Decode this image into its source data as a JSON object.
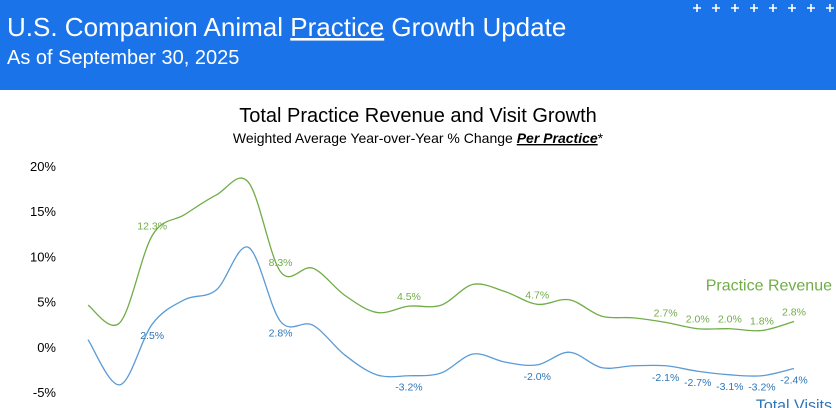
{
  "header": {
    "title": [
      "U.S. Companion Animal",
      "Practice",
      "Growth Update"
    ],
    "subtitle": "As of September 30, 2025"
  },
  "chart_data": {
    "type": "line",
    "title": "Total Practice Revenue and Visit Growth",
    "subtitle": [
      "Weighted Average Year-over-Year % Change",
      "Per Practice",
      "*"
    ],
    "categories": [
      null,
      null,
      null,
      null,
      null,
      null,
      null,
      null,
      null,
      null,
      null,
      null,
      null,
      null,
      null,
      null,
      null,
      null,
      null,
      null,
      null,
      null,
      null
    ],
    "ylim": [
      -5,
      20
    ],
    "yticks": [
      {
        "value": 20,
        "label": "20%"
      },
      {
        "value": 15,
        "label": "15%"
      },
      {
        "value": 10,
        "label": "10%"
      },
      {
        "value": 5,
        "label": "5%"
      },
      {
        "value": 0,
        "label": "0%"
      },
      {
        "value": -5,
        "label": "-5%"
      }
    ],
    "grid": false,
    "series": [
      {
        "name": "Practice Revenue",
        "color": "#70ad47",
        "label_position": "above",
        "values": [
          4.6,
          2.7,
          12.3,
          14.6,
          16.8,
          18.2,
          8.3,
          8.7,
          5.7,
          3.8,
          4.5,
          4.6,
          6.9,
          6.1,
          4.7,
          5.2,
          3.4,
          3.2,
          2.7,
          2.0,
          2.0,
          1.8,
          2.8
        ],
        "value_labels": [
          null,
          null,
          "12.3%",
          null,
          null,
          null,
          "8.3%",
          null,
          null,
          null,
          "4.5%",
          null,
          null,
          null,
          "4.7%",
          null,
          null,
          null,
          "2.7%",
          "2.0%",
          "2.0%",
          "1.8%",
          "2.8%"
        ]
      },
      {
        "name": "Total Visits",
        "color": "#5b9bd5",
        "label_position": "below",
        "values": [
          0.8,
          -4.2,
          2.5,
          5.2,
          6.3,
          11.0,
          2.8,
          2.4,
          -0.9,
          -3.1,
          -3.2,
          -2.9,
          -0.8,
          -1.7,
          -2.0,
          -0.6,
          -2.3,
          -2.1,
          -2.1,
          -2.7,
          -3.1,
          -3.2,
          -2.4
        ],
        "value_labels": [
          null,
          null,
          "2.5%",
          null,
          null,
          null,
          "2.8%",
          null,
          null,
          null,
          "-3.2%",
          null,
          null,
          null,
          "-2.0%",
          null,
          null,
          null,
          "-2.1%",
          "-2.7%",
          "-3.1%",
          "-3.2%",
          "-2.4%"
        ]
      }
    ]
  }
}
